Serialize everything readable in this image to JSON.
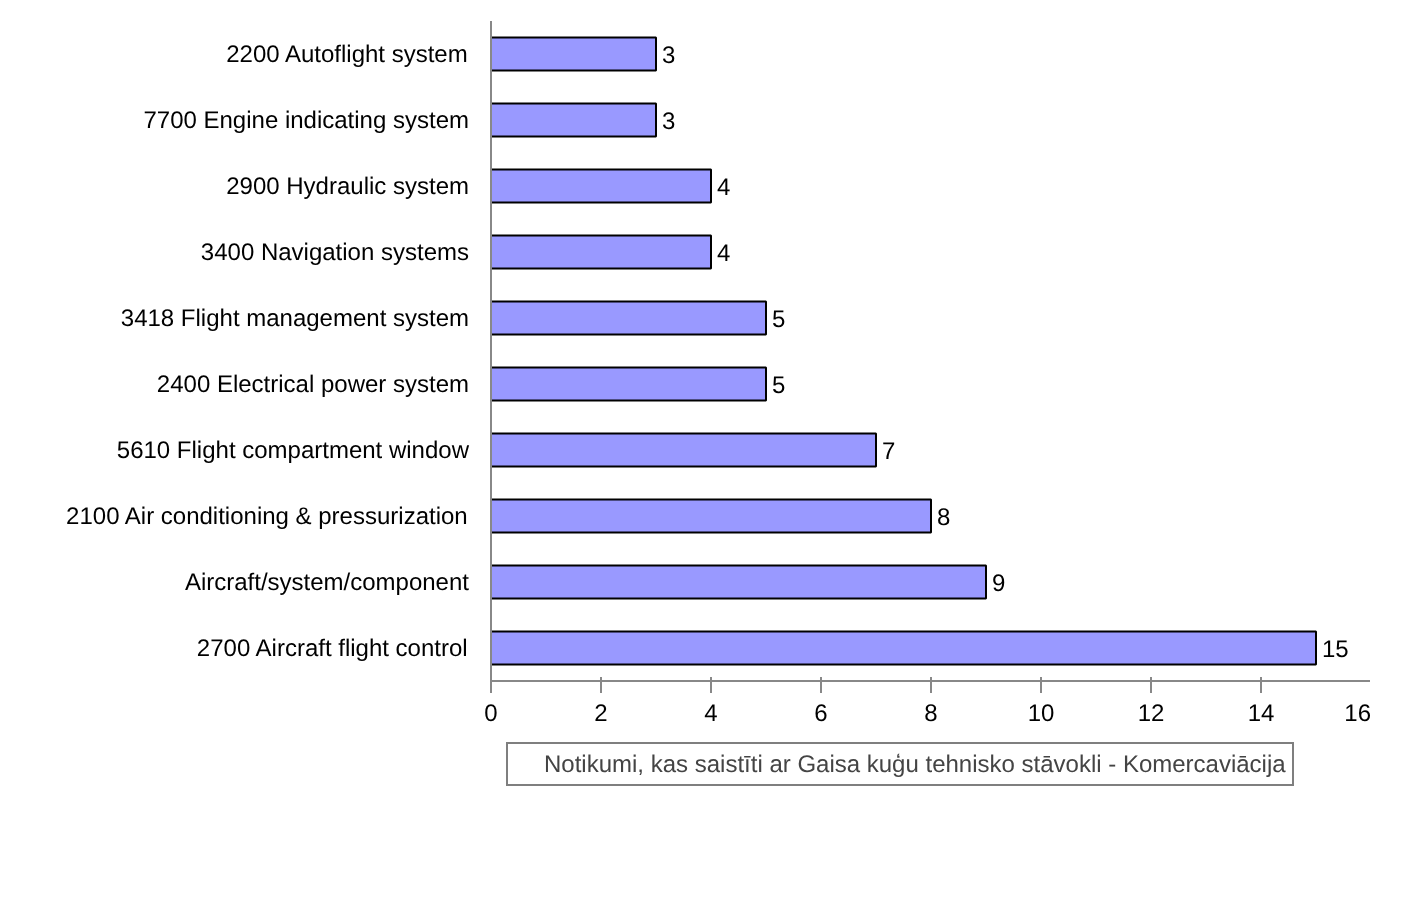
{
  "chart_data": {
    "type": "bar",
    "orientation": "horizontal",
    "categories": [
      "2200 Autoflight system",
      "7700 Engine indicating system",
      "2900 Hydraulic system",
      "3400 Navigation systems",
      "3418 Flight management system",
      "2400 Electrical power system",
      "5610 Flight compartment window",
      "2100 Air conditioning & pressurization",
      "Aircraft/system/component",
      "2700 Aircraft flight control"
    ],
    "series": [
      {
        "name": "Notikumi, kas saistīti ar Gaisa kuģu tehnisko stāvokli - Komercaviācija",
        "color": "#9999ff",
        "values": [
          3,
          3,
          4,
          4,
          5,
          5,
          7,
          8,
          9,
          15
        ]
      }
    ],
    "xlim": [
      0,
      16
    ],
    "xticks": [
      0,
      2,
      4,
      6,
      8,
      10,
      12,
      14,
      16
    ],
    "data_labels": true,
    "grid": false,
    "legend": "bottom"
  }
}
